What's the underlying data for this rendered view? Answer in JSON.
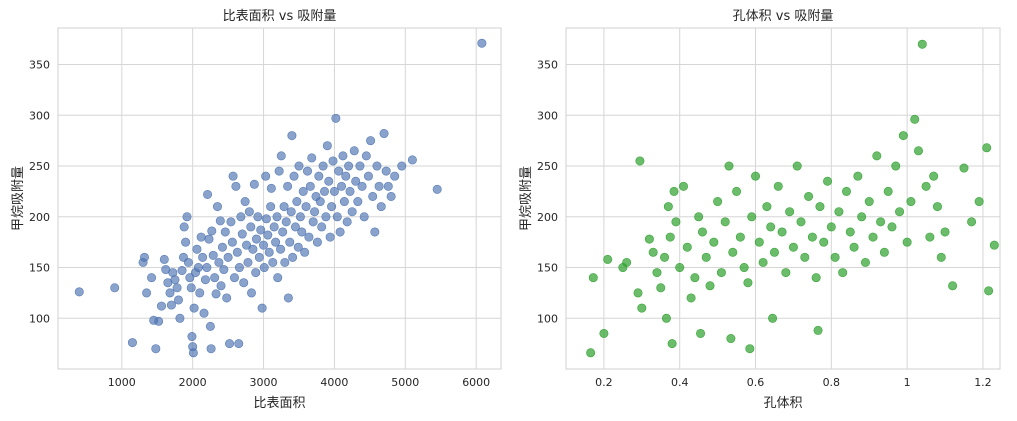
{
  "chart_data": [
    {
      "type": "scatter",
      "title": "比表面积 vs 吸附量",
      "xlabel": "比表面积",
      "ylabel": "甲烷吸附量",
      "xlim": [
        100,
        6350
      ],
      "ylim": [
        50,
        386
      ],
      "xticks": [
        1000,
        2000,
        3000,
        4000,
        5000,
        6000
      ],
      "yticks": [
        100,
        150,
        200,
        250,
        300,
        350
      ],
      "grid": true,
      "point_color": "#4c72b0",
      "point_opacity": 0.65,
      "points": [
        [
          400,
          126
        ],
        [
          900,
          130
        ],
        [
          1150,
          76
        ],
        [
          1300,
          155
        ],
        [
          1320,
          160
        ],
        [
          1350,
          125
        ],
        [
          1420,
          140
        ],
        [
          1450,
          98
        ],
        [
          1480,
          70
        ],
        [
          1520,
          97
        ],
        [
          1560,
          112
        ],
        [
          1600,
          158
        ],
        [
          1620,
          148
        ],
        [
          1650,
          135
        ],
        [
          1680,
          125
        ],
        [
          1700,
          113
        ],
        [
          1720,
          145
        ],
        [
          1750,
          138
        ],
        [
          1780,
          130
        ],
        [
          1800,
          118
        ],
        [
          1820,
          100
        ],
        [
          1850,
          147
        ],
        [
          1870,
          160
        ],
        [
          1880,
          190
        ],
        [
          1900,
          175
        ],
        [
          1920,
          200
        ],
        [
          1940,
          155
        ],
        [
          1960,
          140
        ],
        [
          1980,
          130
        ],
        [
          1990,
          82
        ],
        [
          2000,
          72
        ],
        [
          2010,
          66
        ],
        [
          2020,
          110
        ],
        [
          2040,
          145
        ],
        [
          2060,
          168
        ],
        [
          2080,
          150
        ],
        [
          2100,
          125
        ],
        [
          2120,
          180
        ],
        [
          2140,
          160
        ],
        [
          2160,
          105
        ],
        [
          2180,
          138
        ],
        [
          2200,
          150
        ],
        [
          2210,
          222
        ],
        [
          2230,
          178
        ],
        [
          2250,
          92
        ],
        [
          2260,
          70
        ],
        [
          2270,
          186
        ],
        [
          2290,
          162
        ],
        [
          2310,
          140
        ],
        [
          2330,
          124
        ],
        [
          2350,
          210
        ],
        [
          2370,
          155
        ],
        [
          2390,
          196
        ],
        [
          2400,
          132
        ],
        [
          2420,
          170
        ],
        [
          2440,
          148
        ],
        [
          2460,
          185
        ],
        [
          2480,
          120
        ],
        [
          2500,
          160
        ],
        [
          2520,
          75
        ],
        [
          2540,
          195
        ],
        [
          2560,
          175
        ],
        [
          2570,
          240
        ],
        [
          2590,
          140
        ],
        [
          2610,
          230
        ],
        [
          2630,
          165
        ],
        [
          2650,
          75
        ],
        [
          2660,
          150
        ],
        [
          2680,
          200
        ],
        [
          2700,
          183
        ],
        [
          2720,
          135
        ],
        [
          2740,
          215
        ],
        [
          2760,
          172
        ],
        [
          2780,
          155
        ],
        [
          2800,
          205
        ],
        [
          2820,
          190
        ],
        [
          2830,
          125
        ],
        [
          2850,
          168
        ],
        [
          2870,
          232
        ],
        [
          2890,
          145
        ],
        [
          2900,
          178
        ],
        [
          2920,
          200
        ],
        [
          2940,
          160
        ],
        [
          2960,
          187
        ],
        [
          2980,
          110
        ],
        [
          3000,
          172
        ],
        [
          3010,
          150
        ],
        [
          3030,
          240
        ],
        [
          3040,
          198
        ],
        [
          3060,
          182
        ],
        [
          3080,
          165
        ],
        [
          3100,
          210
        ],
        [
          3110,
          228
        ],
        [
          3130,
          155
        ],
        [
          3150,
          190
        ],
        [
          3170,
          175
        ],
        [
          3190,
          200
        ],
        [
          3200,
          140
        ],
        [
          3220,
          245
        ],
        [
          3240,
          168
        ],
        [
          3250,
          260
        ],
        [
          3270,
          185
        ],
        [
          3290,
          210
        ],
        [
          3300,
          155
        ],
        [
          3320,
          195
        ],
        [
          3340,
          230
        ],
        [
          3350,
          120
        ],
        [
          3370,
          175
        ],
        [
          3390,
          205
        ],
        [
          3400,
          280
        ],
        [
          3410,
          160
        ],
        [
          3430,
          240
        ],
        [
          3450,
          190
        ],
        [
          3470,
          215
        ],
        [
          3490,
          170
        ],
        [
          3500,
          250
        ],
        [
          3520,
          200
        ],
        [
          3540,
          185
        ],
        [
          3560,
          225
        ],
        [
          3580,
          165
        ],
        [
          3600,
          210
        ],
        [
          3620,
          245
        ],
        [
          3640,
          180
        ],
        [
          3660,
          230
        ],
        [
          3680,
          258
        ],
        [
          3700,
          195
        ],
        [
          3720,
          205
        ],
        [
          3740,
          220
        ],
        [
          3760,
          175
        ],
        [
          3780,
          240
        ],
        [
          3800,
          215
        ],
        [
          3820,
          190
        ],
        [
          3840,
          250
        ],
        [
          3860,
          225
        ],
        [
          3880,
          200
        ],
        [
          3900,
          270
        ],
        [
          3920,
          235
        ],
        [
          3940,
          180
        ],
        [
          3960,
          210
        ],
        [
          3980,
          255
        ],
        [
          4000,
          225
        ],
        [
          4020,
          297
        ],
        [
          4040,
          200
        ],
        [
          4060,
          245
        ],
        [
          4080,
          185
        ],
        [
          4100,
          230
        ],
        [
          4120,
          260
        ],
        [
          4140,
          215
        ],
        [
          4160,
          240
        ],
        [
          4180,
          195
        ],
        [
          4200,
          250
        ],
        [
          4220,
          225
        ],
        [
          4250,
          205
        ],
        [
          4280,
          265
        ],
        [
          4300,
          235
        ],
        [
          4330,
          215
        ],
        [
          4360,
          250
        ],
        [
          4390,
          230
        ],
        [
          4420,
          200
        ],
        [
          4450,
          260
        ],
        [
          4480,
          240
        ],
        [
          4510,
          275
        ],
        [
          4540,
          220
        ],
        [
          4570,
          185
        ],
        [
          4600,
          250
        ],
        [
          4630,
          230
        ],
        [
          4660,
          210
        ],
        [
          4700,
          282
        ],
        [
          4730,
          245
        ],
        [
          4760,
          230
        ],
        [
          4800,
          220
        ],
        [
          4850,
          240
        ],
        [
          4950,
          250
        ],
        [
          5100,
          256
        ],
        [
          5450,
          227
        ],
        [
          6080,
          371
        ]
      ]
    },
    {
      "type": "scatter",
      "title": "孔体积 vs 吸附量",
      "xlabel": "孔体积",
      "ylabel": "甲烷吸附量",
      "xlim": [
        0.1,
        1.245
      ],
      "ylim": [
        50,
        386
      ],
      "xticks": [
        0.2,
        0.4,
        0.6,
        0.8,
        1.0,
        1.2
      ],
      "yticks": [
        100,
        150,
        200,
        250,
        300,
        350
      ],
      "grid": true,
      "point_color": "#2ca02c",
      "point_opacity": 0.7,
      "points": [
        [
          0.165,
          66
        ],
        [
          0.172,
          140
        ],
        [
          0.2,
          85
        ],
        [
          0.21,
          158
        ],
        [
          0.25,
          150
        ],
        [
          0.26,
          155
        ],
        [
          0.29,
          125
        ],
        [
          0.295,
          255
        ],
        [
          0.3,
          110
        ],
        [
          0.32,
          178
        ],
        [
          0.33,
          165
        ],
        [
          0.34,
          145
        ],
        [
          0.35,
          130
        ],
        [
          0.36,
          160
        ],
        [
          0.365,
          100
        ],
        [
          0.37,
          210
        ],
        [
          0.375,
          180
        ],
        [
          0.38,
          75
        ],
        [
          0.385,
          225
        ],
        [
          0.39,
          195
        ],
        [
          0.4,
          150
        ],
        [
          0.41,
          230
        ],
        [
          0.42,
          170
        ],
        [
          0.43,
          120
        ],
        [
          0.44,
          140
        ],
        [
          0.45,
          200
        ],
        [
          0.455,
          85
        ],
        [
          0.46,
          185
        ],
        [
          0.47,
          160
        ],
        [
          0.48,
          132
        ],
        [
          0.49,
          175
        ],
        [
          0.5,
          215
        ],
        [
          0.51,
          145
        ],
        [
          0.52,
          195
        ],
        [
          0.53,
          250
        ],
        [
          0.535,
          80
        ],
        [
          0.54,
          165
        ],
        [
          0.55,
          225
        ],
        [
          0.56,
          180
        ],
        [
          0.57,
          150
        ],
        [
          0.58,
          135
        ],
        [
          0.585,
          70
        ],
        [
          0.59,
          200
        ],
        [
          0.6,
          240
        ],
        [
          0.61,
          175
        ],
        [
          0.62,
          155
        ],
        [
          0.63,
          210
        ],
        [
          0.64,
          190
        ],
        [
          0.645,
          100
        ],
        [
          0.65,
          165
        ],
        [
          0.66,
          230
        ],
        [
          0.67,
          185
        ],
        [
          0.68,
          145
        ],
        [
          0.69,
          205
        ],
        [
          0.7,
          170
        ],
        [
          0.71,
          250
        ],
        [
          0.72,
          195
        ],
        [
          0.73,
          160
        ],
        [
          0.74,
          220
        ],
        [
          0.75,
          180
        ],
        [
          0.76,
          140
        ],
        [
          0.765,
          88
        ],
        [
          0.77,
          210
        ],
        [
          0.78,
          175
        ],
        [
          0.79,
          235
        ],
        [
          0.8,
          190
        ],
        [
          0.81,
          160
        ],
        [
          0.82,
          205
        ],
        [
          0.83,
          145
        ],
        [
          0.84,
          225
        ],
        [
          0.85,
          185
        ],
        [
          0.86,
          170
        ],
        [
          0.87,
          240
        ],
        [
          0.88,
          200
        ],
        [
          0.89,
          155
        ],
        [
          0.9,
          215
        ],
        [
          0.91,
          180
        ],
        [
          0.92,
          260
        ],
        [
          0.93,
          195
        ],
        [
          0.94,
          165
        ],
        [
          0.95,
          225
        ],
        [
          0.96,
          190
        ],
        [
          0.97,
          250
        ],
        [
          0.98,
          205
        ],
        [
          0.99,
          280
        ],
        [
          1.0,
          175
        ],
        [
          1.01,
          215
        ],
        [
          1.02,
          296
        ],
        [
          1.03,
          265
        ],
        [
          1.04,
          370
        ],
        [
          1.05,
          230
        ],
        [
          1.06,
          180
        ],
        [
          1.07,
          240
        ],
        [
          1.08,
          210
        ],
        [
          1.09,
          160
        ],
        [
          1.1,
          185
        ],
        [
          1.12,
          132
        ],
        [
          1.15,
          248
        ],
        [
          1.17,
          195
        ],
        [
          1.19,
          215
        ],
        [
          1.21,
          268
        ],
        [
          1.215,
          127
        ],
        [
          1.23,
          172
        ]
      ]
    }
  ]
}
